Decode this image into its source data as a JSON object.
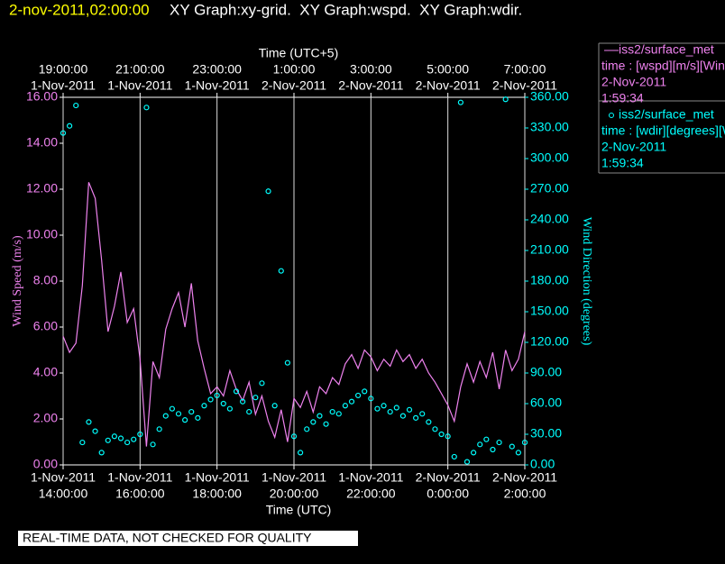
{
  "chart_data": {
    "type": "line",
    "title": {
      "timestamp": "2-nov-2011,02:00:00",
      "graphs": "XY Graph:xy-grid.  XY Graph:wspd.  XY Graph:wdir."
    },
    "x_label": "Time (UTC)",
    "x2_label": "Time (UTC+5)",
    "y_label": "Wind Speed (m/s)",
    "y2_label": "Wind Direction (degrees)",
    "note": "REAL-TIME DATA, NOT CHECKED FOR QUALITY",
    "xlim": [
      "2011-11-01T14:00:00",
      "2011-11-02T02:00:00"
    ],
    "xticks": [
      {
        "value": "2011-11-01T14:00:00",
        "label": [
          "1-Nov-2011",
          "14:00:00"
        ]
      },
      {
        "value": "2011-11-01T16:00:00",
        "label": [
          "1-Nov-2011",
          "16:00:00"
        ]
      },
      {
        "value": "2011-11-01T18:00:00",
        "label": [
          "1-Nov-2011",
          "18:00:00"
        ]
      },
      {
        "value": "2011-11-01T20:00:00",
        "label": [
          "1-Nov-2011",
          "20:00:00"
        ]
      },
      {
        "value": "2011-11-01T22:00:00",
        "label": [
          "1-Nov-2011",
          "22:00:00"
        ]
      },
      {
        "value": "2011-11-02T00:00:00",
        "label": [
          "2-Nov-2011",
          "0:00:00"
        ]
      },
      {
        "value": "2011-11-02T02:00:00",
        "label": [
          "2-Nov-2011",
          "2:00:00"
        ]
      }
    ],
    "x2ticks": [
      {
        "value": "2011-11-01T14:00:00",
        "label": [
          "19:00:00",
          "1-Nov-2011"
        ]
      },
      {
        "value": "2011-11-01T16:00:00",
        "label": [
          "21:00:00",
          "1-Nov-2011"
        ]
      },
      {
        "value": "2011-11-01T18:00:00",
        "label": [
          "23:00:00",
          "1-Nov-2011"
        ]
      },
      {
        "value": "2011-11-01T20:00:00",
        "label": [
          "1:00:00",
          "2-Nov-2011"
        ]
      },
      {
        "value": "2011-11-01T22:00:00",
        "label": [
          "3:00:00",
          "2-Nov-2011"
        ]
      },
      {
        "value": "2011-11-02T00:00:00",
        "label": [
          "5:00:00",
          "2-Nov-2011"
        ]
      },
      {
        "value": "2011-11-02T02:00:00",
        "label": [
          "7:00:00",
          "2-Nov-2011"
        ]
      }
    ],
    "ylim": [
      0,
      16
    ],
    "yticks": [
      {
        "value": 0,
        "label": "0.00"
      },
      {
        "value": 2,
        "label": "2.00"
      },
      {
        "value": 4,
        "label": "4.00"
      },
      {
        "value": 6,
        "label": "6.00"
      },
      {
        "value": 8,
        "label": "8.00"
      },
      {
        "value": 10,
        "label": "10.00"
      },
      {
        "value": 12,
        "label": "12.00"
      },
      {
        "value": 14,
        "label": "14.00"
      },
      {
        "value": 16,
        "label": "16.00"
      }
    ],
    "y2lim": [
      0,
      360
    ],
    "y2ticks": [
      {
        "value": 0,
        "label": "0.00"
      },
      {
        "value": 30,
        "label": "30.00"
      },
      {
        "value": 60,
        "label": "60.00"
      },
      {
        "value": 90,
        "label": "90.00"
      },
      {
        "value": 120,
        "label": "120.00"
      },
      {
        "value": 150,
        "label": "150.00"
      },
      {
        "value": 180,
        "label": "180.00"
      },
      {
        "value": 210,
        "label": "210.00"
      },
      {
        "value": 240,
        "label": "240.00"
      },
      {
        "value": 270,
        "label": "270.00"
      },
      {
        "value": 300,
        "label": "300.00"
      },
      {
        "value": 330,
        "label": "330.00"
      },
      {
        "value": 360,
        "label": "360.00"
      }
    ],
    "grid": true,
    "left_color": "#ee82ee",
    "right_color": "#00ffff",
    "x": [
      "2011-11-01T14:00:00",
      "2011-11-01T14:10:00",
      "2011-11-01T14:20:00",
      "2011-11-01T14:30:00",
      "2011-11-01T14:40:00",
      "2011-11-01T14:50:00",
      "2011-11-01T15:00:00",
      "2011-11-01T15:10:00",
      "2011-11-01T15:20:00",
      "2011-11-01T15:30:00",
      "2011-11-01T15:40:00",
      "2011-11-01T15:50:00",
      "2011-11-01T16:00:00",
      "2011-11-01T16:10:00",
      "2011-11-01T16:20:00",
      "2011-11-01T16:30:00",
      "2011-11-01T16:40:00",
      "2011-11-01T16:50:00",
      "2011-11-01T17:00:00",
      "2011-11-01T17:10:00",
      "2011-11-01T17:20:00",
      "2011-11-01T17:30:00",
      "2011-11-01T17:40:00",
      "2011-11-01T17:50:00",
      "2011-11-01T18:00:00",
      "2011-11-01T18:10:00",
      "2011-11-01T18:20:00",
      "2011-11-01T18:30:00",
      "2011-11-01T18:40:00",
      "2011-11-01T18:50:00",
      "2011-11-01T19:00:00",
      "2011-11-01T19:10:00",
      "2011-11-01T19:20:00",
      "2011-11-01T19:30:00",
      "2011-11-01T19:40:00",
      "2011-11-01T19:50:00",
      "2011-11-01T20:00:00",
      "2011-11-01T20:10:00",
      "2011-11-01T20:20:00",
      "2011-11-01T20:30:00",
      "2011-11-01T20:40:00",
      "2011-11-01T20:50:00",
      "2011-11-01T21:00:00",
      "2011-11-01T21:10:00",
      "2011-11-01T21:20:00",
      "2011-11-01T21:30:00",
      "2011-11-01T21:40:00",
      "2011-11-01T21:50:00",
      "2011-11-01T22:00:00",
      "2011-11-01T22:10:00",
      "2011-11-01T22:20:00",
      "2011-11-01T22:30:00",
      "2011-11-01T22:40:00",
      "2011-11-01T22:50:00",
      "2011-11-01T23:00:00",
      "2011-11-01T23:10:00",
      "2011-11-01T23:20:00",
      "2011-11-01T23:30:00",
      "2011-11-01T23:40:00",
      "2011-11-01T23:50:00",
      "2011-11-02T00:00:00",
      "2011-11-02T00:10:00",
      "2011-11-02T00:20:00",
      "2011-11-02T00:30:00",
      "2011-11-02T00:40:00",
      "2011-11-02T00:50:00",
      "2011-11-02T01:00:00",
      "2011-11-02T01:10:00",
      "2011-11-02T01:20:00",
      "2011-11-02T01:30:00",
      "2011-11-02T01:40:00",
      "2011-11-02T01:50:00",
      "2011-11-02T02:00:00"
    ],
    "series": [
      {
        "name": "iss2/surface_met",
        "type": "line",
        "color": "#ee82ee",
        "legend_lines": [
          "time : [wspd][m/s][Wind",
          "2-Nov-2011",
          "1:59:34"
        ],
        "values": [
          5.6,
          4.9,
          5.3,
          7.8,
          12.3,
          11.6,
          8.9,
          5.8,
          6.9,
          8.4,
          6.2,
          6.8,
          4.6,
          0.8,
          4.5,
          3.8,
          5.9,
          6.8,
          7.5,
          6.0,
          7.9,
          5.4,
          4.2,
          3.1,
          3.4,
          3.0,
          4.1,
          3.3,
          2.8,
          3.6,
          2.2,
          3.0,
          1.9,
          1.2,
          2.4,
          1.0,
          2.9,
          2.5,
          3.2,
          2.3,
          3.4,
          3.1,
          3.8,
          3.5,
          4.4,
          4.8,
          4.2,
          5.0,
          4.7,
          4.1,
          4.6,
          4.3,
          5.0,
          4.5,
          4.8,
          4.2,
          4.6,
          4.0,
          3.6,
          3.1,
          2.6,
          1.9,
          3.4,
          4.4,
          3.6,
          4.5,
          3.8,
          4.9,
          3.3,
          5.0,
          4.1,
          4.6,
          5.8
        ]
      },
      {
        "name": "iss2/surface_met",
        "type": "scatter",
        "axis": "y2",
        "color": "#00ffff",
        "legend_lines": [
          "time : [wdir][degrees][Wind",
          "2-Nov-2011",
          "1:59:34"
        ],
        "values": [
          325,
          332,
          352,
          22,
          42,
          33,
          12,
          24,
          28,
          26,
          22,
          25,
          30,
          350,
          20,
          35,
          48,
          55,
          50,
          44,
          52,
          46,
          58,
          64,
          68,
          60,
          55,
          72,
          62,
          52,
          66,
          80,
          268,
          58,
          190,
          100,
          28,
          12,
          35,
          42,
          48,
          40,
          52,
          50,
          58,
          62,
          68,
          72,
          65,
          55,
          58,
          52,
          56,
          48,
          54,
          46,
          50,
          42,
          35,
          30,
          28,
          8,
          355,
          3,
          12,
          20,
          25,
          15,
          22,
          358,
          18,
          12,
          22
        ]
      }
    ]
  }
}
